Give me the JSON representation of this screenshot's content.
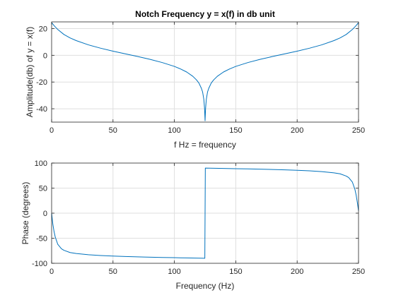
{
  "chart_data": [
    {
      "type": "line",
      "title": "Notch Frequency y = x(f) in db unit",
      "xlabel": "f Hz = frequency",
      "ylabel": "Amplitude(db) of y = x(f)",
      "xlim": [
        0,
        250
      ],
      "ylim": [
        -50,
        25
      ],
      "xticks": [
        0,
        50,
        100,
        150,
        200,
        250
      ],
      "yticks": [
        -40,
        -20,
        0,
        20
      ],
      "grid": true,
      "series": [
        {
          "color": "#0072BD",
          "points": [
            [
              0,
              24.5
            ],
            [
              2,
              22.2
            ],
            [
              5,
              19.3
            ],
            [
              10,
              15.6
            ],
            [
              15,
              13.0
            ],
            [
              20,
              11.0
            ],
            [
              30,
              7.8
            ],
            [
              40,
              5.3
            ],
            [
              50,
              3.1
            ],
            [
              60,
              1.1
            ],
            [
              70,
              -0.9
            ],
            [
              80,
              -3.0
            ],
            [
              90,
              -5.4
            ],
            [
              100,
              -8.3
            ],
            [
              105,
              -10.2
            ],
            [
              110,
              -12.5
            ],
            [
              115,
              -15.7
            ],
            [
              118,
              -18.4
            ],
            [
              120,
              -20.8
            ],
            [
              122,
              -24.7
            ],
            [
              123,
              -27.5
            ],
            [
              124,
              -33.0
            ],
            [
              124.6,
              -40.0
            ],
            [
              125,
              -49.0
            ],
            [
              125.4,
              -40.0
            ],
            [
              126,
              -33.0
            ],
            [
              127,
              -27.5
            ],
            [
              128,
              -24.7
            ],
            [
              130,
              -20.8
            ],
            [
              132,
              -18.4
            ],
            [
              135,
              -15.7
            ],
            [
              140,
              -12.5
            ],
            [
              145,
              -10.2
            ],
            [
              150,
              -8.3
            ],
            [
              160,
              -5.4
            ],
            [
              170,
              -3.0
            ],
            [
              180,
              -0.9
            ],
            [
              190,
              1.1
            ],
            [
              200,
              3.1
            ],
            [
              210,
              5.3
            ],
            [
              220,
              7.8
            ],
            [
              230,
              11.0
            ],
            [
              235,
              13.0
            ],
            [
              240,
              15.6
            ],
            [
              245,
              19.3
            ],
            [
              248,
              22.2
            ],
            [
              250,
              24.5
            ]
          ]
        }
      ]
    },
    {
      "type": "line",
      "title": "",
      "xlabel": "Frequency (Hz)",
      "ylabel": "Phase (degrees)",
      "xlim": [
        0,
        250
      ],
      "ylim": [
        -100,
        100
      ],
      "xticks": [
        0,
        50,
        100,
        150,
        200,
        250
      ],
      "yticks": [
        -100,
        -50,
        0,
        50,
        100
      ],
      "grid": true,
      "series": [
        {
          "color": "#0072BD",
          "points": [
            [
              0,
              0
            ],
            [
              1,
              -22
            ],
            [
              2,
              -37
            ],
            [
              3,
              -48
            ],
            [
              5,
              -62
            ],
            [
              8,
              -71
            ],
            [
              10,
              -74
            ],
            [
              15,
              -78.5
            ],
            [
              20,
              -80.5
            ],
            [
              30,
              -83
            ],
            [
              40,
              -84.5
            ],
            [
              50,
              -85.5
            ],
            [
              60,
              -86.5
            ],
            [
              75,
              -87.5
            ],
            [
              90,
              -88.3
            ],
            [
              100,
              -88.8
            ],
            [
              110,
              -89.3
            ],
            [
              124.8,
              -89.9
            ],
            [
              125.2,
              89.9
            ],
            [
              140,
              89.3
            ],
            [
              150,
              88.8
            ],
            [
              160,
              88.3
            ],
            [
              175,
              87.5
            ],
            [
              190,
              86.5
            ],
            [
              200,
              85.5
            ],
            [
              210,
              84.5
            ],
            [
              220,
              83
            ],
            [
              230,
              80.5
            ],
            [
              235,
              78.5
            ],
            [
              240,
              74
            ],
            [
              242,
              71
            ],
            [
              245,
              62
            ],
            [
              247,
              48
            ],
            [
              248,
              37
            ],
            [
              249,
              22
            ],
            [
              250,
              5
            ]
          ]
        }
      ]
    }
  ]
}
